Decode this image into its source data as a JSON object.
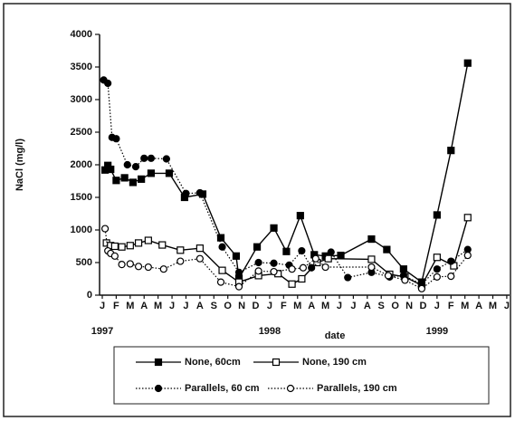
{
  "chart_data": {
    "type": "line",
    "y_label": "NaCl (mg/l)",
    "x_label": "date",
    "xlim": [
      0,
      29.2
    ],
    "ylim": [
      0,
      4000
    ],
    "yticks": [
      0,
      500,
      1000,
      1500,
      2000,
      2500,
      3000,
      3500,
      4000
    ],
    "xticks": [
      {
        "value": 0,
        "label": "J"
      },
      {
        "value": 1,
        "label": "F"
      },
      {
        "value": 2,
        "label": "M"
      },
      {
        "value": 3,
        "label": "A"
      },
      {
        "value": 4,
        "label": "M"
      },
      {
        "value": 5,
        "label": "J"
      },
      {
        "value": 6,
        "label": "J"
      },
      {
        "value": 7,
        "label": "A"
      },
      {
        "value": 8,
        "label": "S"
      },
      {
        "value": 9,
        "label": "O"
      },
      {
        "value": 10,
        "label": "N"
      },
      {
        "value": 11,
        "label": "D"
      },
      {
        "value": 12,
        "label": "J"
      },
      {
        "value": 13,
        "label": "F"
      },
      {
        "value": 14,
        "label": "M"
      },
      {
        "value": 15,
        "label": "A"
      },
      {
        "value": 16,
        "label": "M"
      },
      {
        "value": 17,
        "label": "J"
      },
      {
        "value": 18,
        "label": "J"
      },
      {
        "value": 19,
        "label": "A"
      },
      {
        "value": 20,
        "label": "S"
      },
      {
        "value": 21,
        "label": "O"
      },
      {
        "value": 22,
        "label": "N"
      },
      {
        "value": 23,
        "label": "D"
      },
      {
        "value": 24,
        "label": "J"
      },
      {
        "value": 25,
        "label": "F"
      },
      {
        "value": 26,
        "label": "M"
      },
      {
        "value": 27,
        "label": "A"
      },
      {
        "value": 28,
        "label": "M"
      },
      {
        "value": 29,
        "label": "J"
      }
    ],
    "year_labels": [
      {
        "value": 0,
        "label": "1997"
      },
      {
        "value": 12,
        "label": "1998"
      },
      {
        "value": 24,
        "label": "1999"
      }
    ],
    "series": [
      {
        "name": "None, 60cm",
        "color": "#000000",
        "marker": "square",
        "filled": true,
        "dashed": false,
        "x": [
          0.2,
          0.4,
          0.6,
          1.0,
          1.6,
          2.2,
          2.8,
          3.5,
          4.8,
          5.9,
          7.2,
          8.5,
          9.6,
          9.8,
          11.1,
          12.3,
          13.2,
          14.2,
          15.2,
          16.0,
          17.1,
          19.3,
          20.4,
          21.6,
          22.9,
          24.0,
          25.0,
          26.2
        ],
        "values": [
          1920,
          1990,
          1930,
          1760,
          1800,
          1730,
          1780,
          1870,
          1870,
          1500,
          1550,
          880,
          600,
          260,
          740,
          1030,
          670,
          1220,
          620,
          600,
          610,
          860,
          700,
          400,
          200,
          1230,
          2220,
          3560
        ]
      },
      {
        "name": "None, 190 cm",
        "color": "#000000",
        "marker": "square",
        "filled": false,
        "dashed": false,
        "x": [
          0.3,
          0.6,
          0.9,
          1.4,
          2.0,
          2.6,
          3.3,
          4.3,
          5.6,
          7.0,
          8.6,
          9.8,
          11.2,
          12.6,
          13.6,
          14.3,
          15.4,
          16.2,
          19.3,
          20.6,
          21.7,
          22.9,
          24.0,
          25.2,
          26.2
        ],
        "values": [
          800,
          760,
          750,
          740,
          760,
          800,
          840,
          770,
          690,
          720,
          380,
          200,
          300,
          330,
          170,
          250,
          500,
          560,
          550,
          320,
          280,
          150,
          580,
          450,
          1190
        ]
      },
      {
        "name": "Parallels, 60 cm",
        "color": "#000000",
        "marker": "circle",
        "filled": true,
        "dashed": true,
        "x": [
          0.1,
          0.4,
          0.7,
          1.0,
          1.8,
          2.4,
          3.0,
          3.5,
          4.6,
          6.0,
          7.0,
          8.6,
          9.8,
          11.2,
          12.3,
          13.4,
          14.3,
          15.0,
          16.4,
          17.6,
          19.3,
          20.6,
          21.6,
          22.9,
          24.0,
          25.0,
          26.2
        ],
        "values": [
          3300,
          3250,
          2420,
          2400,
          2000,
          1970,
          2100,
          2100,
          2090,
          1560,
          1570,
          740,
          350,
          500,
          490,
          460,
          680,
          420,
          660,
          270,
          350,
          280,
          300,
          170,
          400,
          520,
          700
        ]
      },
      {
        "name": "Parallels, 190 cm",
        "color": "#000000",
        "marker": "circle",
        "filled": false,
        "dashed": true,
        "x": [
          0.2,
          0.4,
          0.6,
          0.9,
          1.4,
          2.0,
          2.6,
          3.3,
          4.4,
          5.6,
          7.0,
          8.5,
          9.8,
          11.2,
          12.3,
          13.6,
          14.4,
          15.3,
          16.0,
          19.3,
          20.5,
          21.7,
          22.9,
          24.0,
          25.0,
          26.2
        ],
        "values": [
          1020,
          680,
          640,
          600,
          470,
          480,
          440,
          430,
          400,
          520,
          560,
          200,
          130,
          370,
          360,
          400,
          420,
          560,
          430,
          430,
          300,
          230,
          100,
          280,
          290,
          610
        ]
      }
    ]
  }
}
